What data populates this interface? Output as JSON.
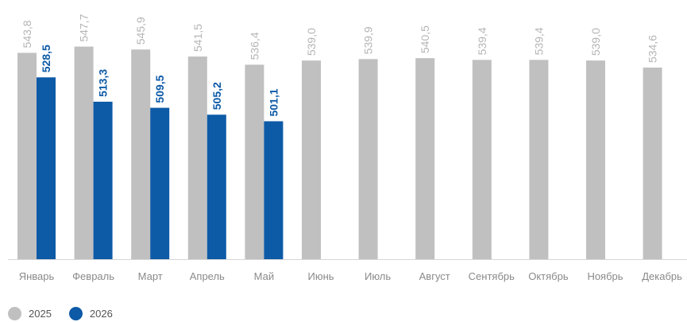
{
  "chart_data": {
    "type": "bar",
    "categories": [
      "Январь",
      "Февраль",
      "Март",
      "Апрель",
      "Май",
      "Июнь",
      "Июль",
      "Август",
      "Сентябрь",
      "Октябрь",
      "Ноябрь",
      "Декабрь"
    ],
    "series": [
      {
        "name": "2025",
        "color": "#c0c0c0",
        "values": [
          543.8,
          547.7,
          545.9,
          541.5,
          536.4,
          539.0,
          539.9,
          540.5,
          539.4,
          539.4,
          539.0,
          534.6
        ],
        "labels": [
          "543,8",
          "547,7",
          "545,9",
          "541,5",
          "536,4",
          "539,0",
          "539,9",
          "540,5",
          "539,4",
          "539,4",
          "539,0",
          "534,6"
        ]
      },
      {
        "name": "2026",
        "color": "#0d5aa7",
        "values": [
          528.5,
          513.3,
          509.5,
          505.2,
          501.1,
          null,
          null,
          null,
          null,
          null,
          null,
          null
        ],
        "labels": [
          "528,5",
          "513,3",
          "509,5",
          "505,2",
          "501,1",
          "",
          "",
          "",
          "",
          "",
          "",
          ""
        ]
      }
    ],
    "ylim": [
      415,
      551
    ],
    "grid": false,
    "legend_position": "bottom-left",
    "data_labels": "rotated-vertical"
  }
}
